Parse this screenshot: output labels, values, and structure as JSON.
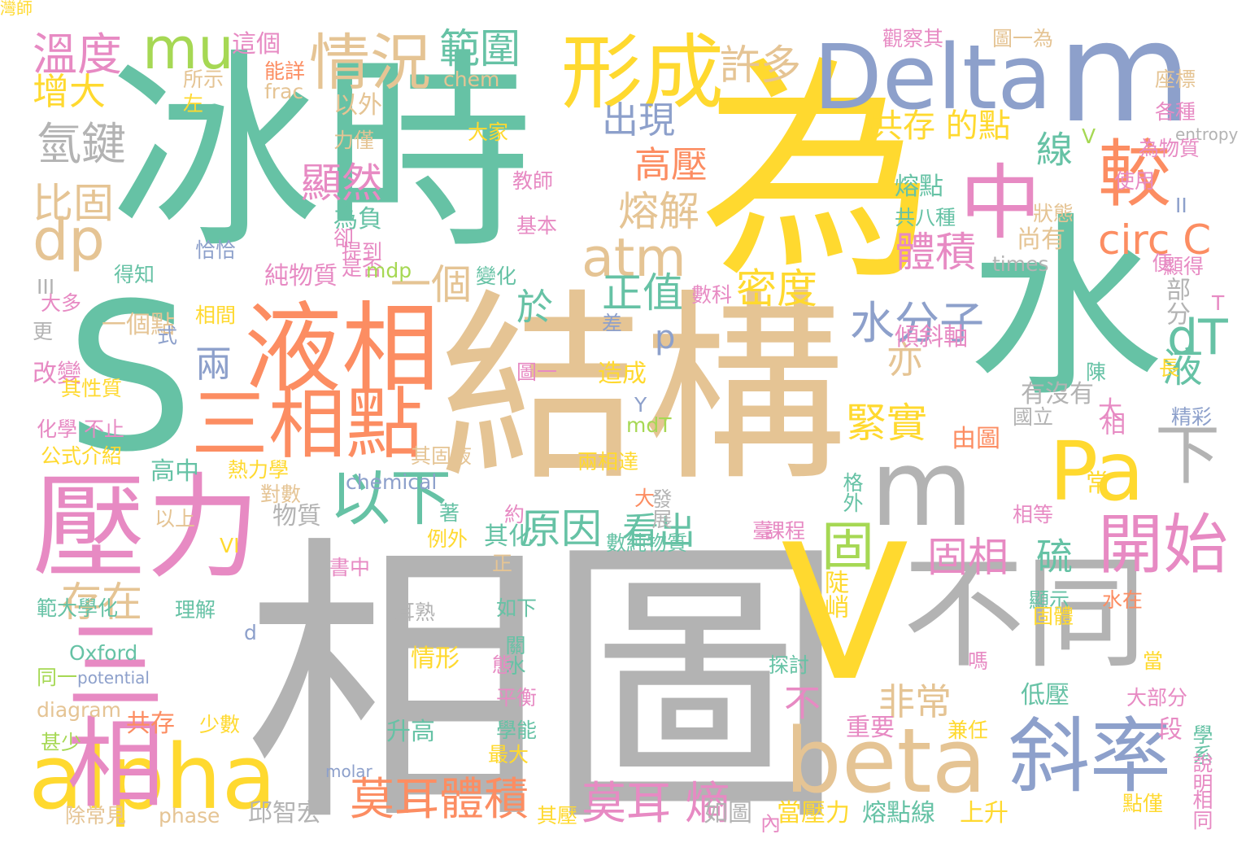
{
  "palette": {
    "green": "#66c2a5",
    "orange": "#fc8d62",
    "blue": "#8da0cb",
    "pink": "#e78ac3",
    "lime": "#a6d854",
    "yellow": "#ffd92f",
    "tan": "#e5c494",
    "gray": "#b3b3b3"
  },
  "words": [
    {
      "t": "相圖",
      "c": "gray"
    },
    {
      "t": "結構",
      "c": "tan"
    },
    {
      "t": "冰時",
      "c": "green"
    },
    {
      "t": "為",
      "c": "yellow"
    },
    {
      "t": "水",
      "c": "green"
    },
    {
      "t": "S",
      "c": "green"
    },
    {
      "t": "V",
      "c": "yellow"
    },
    {
      "t": "m",
      "c": "blue"
    },
    {
      "t": "Delta",
      "c": "blue"
    },
    {
      "t": "壓力",
      "c": "pink"
    },
    {
      "t": "液相",
      "c": "orange"
    },
    {
      "t": "三相點",
      "c": "orange"
    },
    {
      "t": "alpha",
      "c": "yellow"
    },
    {
      "t": "beta",
      "c": "tan"
    },
    {
      "t": "不同",
      "c": "gray"
    },
    {
      "t": "m",
      "c": "gray"
    },
    {
      "t": "形成",
      "c": "yellow"
    },
    {
      "t": "三相",
      "c": "pink"
    },
    {
      "t": "斜率",
      "c": "blue"
    },
    {
      "t": "Pa",
      "c": "yellow"
    },
    {
      "t": "中",
      "c": "pink"
    },
    {
      "t": "較",
      "c": "orange"
    },
    {
      "t": "情況",
      "c": "tan"
    },
    {
      "t": "mu",
      "c": "lime"
    },
    {
      "t": "dp",
      "c": "tan"
    },
    {
      "t": "以下",
      "c": "green"
    },
    {
      "t": "atm",
      "c": "tan"
    },
    {
      "t": "dT",
      "c": "green"
    },
    {
      "t": "下",
      "c": "gray"
    },
    {
      "t": "開始",
      "c": "pink"
    },
    {
      "t": "莫耳體積",
      "c": "orange"
    },
    {
      "t": "莫耳 熵",
      "c": "pink"
    },
    {
      "t": "circ C",
      "c": "orange"
    },
    {
      "t": "水分子",
      "c": "blue"
    },
    {
      "t": "緊實",
      "c": "yellow"
    },
    {
      "t": "固",
      "c": "lime"
    },
    {
      "t": "溫度",
      "c": "pink"
    },
    {
      "t": "氫鍵",
      "c": "gray"
    },
    {
      "t": "比固",
      "c": "tan"
    },
    {
      "t": "增大",
      "c": "yellow"
    },
    {
      "t": "範圍",
      "c": "green"
    },
    {
      "t": "許多",
      "c": "tan"
    },
    {
      "t": "出現",
      "c": "blue"
    },
    {
      "t": "高壓",
      "c": "orange"
    },
    {
      "t": "顯然",
      "c": "pink"
    },
    {
      "t": "熔解",
      "c": "tan"
    },
    {
      "t": "體積",
      "c": "pink"
    },
    {
      "t": "線",
      "c": "green"
    },
    {
      "t": "一個",
      "c": "tan"
    },
    {
      "t": "正值",
      "c": "green"
    },
    {
      "t": "密度",
      "c": "yellow"
    },
    {
      "t": "於",
      "c": "green"
    },
    {
      "t": "p",
      "c": "blue"
    },
    {
      "t": "兩",
      "c": "blue"
    },
    {
      "t": "亦",
      "c": "tan"
    },
    {
      "t": "原因",
      "c": "green"
    },
    {
      "t": "看出",
      "c": "green"
    },
    {
      "t": "固相",
      "c": "pink"
    },
    {
      "t": "硫",
      "c": "green"
    },
    {
      "t": "存在",
      "c": "tan"
    },
    {
      "t": "非常",
      "c": "tan"
    },
    {
      "t": "不",
      "c": "pink"
    },
    {
      "t": "液",
      "c": "green"
    },
    {
      "t": "共存 的點",
      "c": "yellow"
    },
    {
      "t": "熔點",
      "c": "green"
    },
    {
      "t": "共八種",
      "c": "green"
    },
    {
      "t": "尚有",
      "c": "tan"
    },
    {
      "t": "狀態",
      "c": "tan"
    },
    {
      "t": "傾斜軸",
      "c": "pink"
    },
    {
      "t": "部分",
      "c": "gray"
    },
    {
      "t": "Oxford",
      "c": "green"
    },
    {
      "t": "情形",
      "c": "yellow"
    },
    {
      "t": "升高",
      "c": "green"
    },
    {
      "t": "共存",
      "c": "orange"
    },
    {
      "t": "邱智宏",
      "c": "gray"
    },
    {
      "t": "如圖",
      "c": "gray"
    },
    {
      "t": "當壓力",
      "c": "yellow"
    },
    {
      "t": "熔點線",
      "c": "green"
    },
    {
      "t": "上升",
      "c": "yellow"
    },
    {
      "t": "低壓",
      "c": "green"
    },
    {
      "t": "重要",
      "c": "pink"
    },
    {
      "t": "陡峭",
      "c": "yellow"
    },
    {
      "t": "由圖",
      "c": "orange"
    },
    {
      "t": "造成",
      "c": "yellow"
    },
    {
      "t": "一個點",
      "c": "tan"
    },
    {
      "t": "改變",
      "c": "pink"
    },
    {
      "t": "高中",
      "c": "green"
    },
    {
      "t": "物質",
      "c": "gray"
    },
    {
      "t": "這個",
      "c": "pink"
    },
    {
      "t": "所示",
      "c": "tan"
    },
    {
      "t": "以外",
      "c": "tan"
    },
    {
      "t": "純物質",
      "c": "pink"
    },
    {
      "t": "為負",
      "c": "green"
    },
    {
      "t": "相間",
      "c": "yellow"
    },
    {
      "t": "chem",
      "c": "tan"
    },
    {
      "t": "frac",
      "c": "tan"
    },
    {
      "t": "chemical",
      "c": "blue"
    },
    {
      "t": "diagram",
      "c": "tan"
    },
    {
      "t": "phase",
      "c": "tan"
    },
    {
      "t": "potential",
      "c": "blue"
    },
    {
      "t": "molar",
      "c": "blue"
    },
    {
      "t": "entropy",
      "c": "gray"
    },
    {
      "t": "times",
      "c": "gray"
    },
    {
      "t": "觀察其",
      "c": "pink"
    },
    {
      "t": "圖一為",
      "c": "tan"
    },
    {
      "t": "座標",
      "c": "tan"
    },
    {
      "t": "各種",
      "c": "pink"
    },
    {
      "t": "使用",
      "c": "pink"
    },
    {
      "t": "為物質",
      "c": "pink"
    },
    {
      "t": "顯得",
      "c": "pink"
    },
    {
      "t": "便",
      "c": "pink"
    },
    {
      "t": "大",
      "c": "pink"
    },
    {
      "t": "常",
      "c": "yellow"
    },
    {
      "t": "格外",
      "c": "green"
    },
    {
      "t": "課程",
      "c": "pink"
    },
    {
      "t": "水在",
      "c": "orange"
    },
    {
      "t": "顯示",
      "c": "green"
    },
    {
      "t": "探討",
      "c": "green"
    },
    {
      "t": "大部分",
      "c": "pink"
    },
    {
      "t": "兼任",
      "c": "yellow"
    },
    {
      "t": "段",
      "c": "pink"
    },
    {
      "t": "學系",
      "c": "green"
    },
    {
      "t": "說明",
      "c": "pink"
    },
    {
      "t": "相同",
      "c": "pink"
    },
    {
      "t": "點僅",
      "c": "yellow"
    },
    {
      "t": "精彩",
      "c": "blue"
    },
    {
      "t": "有沒有",
      "c": "gray"
    },
    {
      "t": "陳",
      "c": "green"
    },
    {
      "t": "國立",
      "c": "gray"
    },
    {
      "t": "相",
      "c": "pink"
    },
    {
      "t": "大",
      "c": "orange"
    },
    {
      "t": "發展",
      "c": "gray"
    },
    {
      "t": "臺",
      "c": "pink"
    },
    {
      "t": "相等",
      "c": "pink"
    },
    {
      "t": "數純物質",
      "c": "green"
    },
    {
      "t": "其化",
      "c": "green"
    },
    {
      "t": "正",
      "c": "tan"
    },
    {
      "t": "例外",
      "c": "yellow"
    },
    {
      "t": "書中",
      "c": "pink"
    },
    {
      "t": "如下",
      "c": "green"
    },
    {
      "t": "耳熟",
      "c": "gray"
    },
    {
      "t": "關水",
      "c": "green"
    },
    {
      "t": "態",
      "c": "pink"
    },
    {
      "t": "平衡",
      "c": "pink"
    },
    {
      "t": "學能",
      "c": "green"
    },
    {
      "t": "最大",
      "c": "yellow"
    },
    {
      "t": "其壓",
      "c": "yellow"
    },
    {
      "t": "內",
      "c": "pink"
    },
    {
      "t": "d",
      "c": "blue"
    },
    {
      "t": "少數",
      "c": "yellow"
    },
    {
      "t": "理解",
      "c": "green"
    },
    {
      "t": "範大學化",
      "c": "green"
    },
    {
      "t": "同一",
      "c": "lime"
    },
    {
      "t": "甚少",
      "c": "lime"
    },
    {
      "t": "除常見",
      "c": "tan"
    },
    {
      "t": "以上",
      "c": "tan"
    },
    {
      "t": "熱力學",
      "c": "yellow"
    },
    {
      "t": "對數",
      "c": "tan"
    },
    {
      "t": "其固液",
      "c": "tan"
    },
    {
      "t": "介紹",
      "c": "yellow"
    },
    {
      "t": "其性質",
      "c": "yellow"
    },
    {
      "t": "化學 不止",
      "c": "pink"
    },
    {
      "t": "公式",
      "c": "yellow"
    },
    {
      "t": "式",
      "c": "blue"
    },
    {
      "t": "數科",
      "c": "pink"
    },
    {
      "t": "差",
      "c": "blue"
    },
    {
      "t": "圖一",
      "c": "pink"
    },
    {
      "t": "變化",
      "c": "green"
    },
    {
      "t": "是否",
      "c": "pink"
    },
    {
      "t": "提到",
      "c": "pink"
    },
    {
      "t": "卻",
      "c": "pink"
    },
    {
      "t": "基本",
      "c": "pink"
    },
    {
      "t": "恰恰",
      "c": "blue"
    },
    {
      "t": "得知",
      "c": "green"
    },
    {
      "t": "大多",
      "c": "pink"
    },
    {
      "t": "更",
      "c": "gray"
    },
    {
      "t": "左",
      "c": "yellow"
    },
    {
      "t": "能詳",
      "c": "orange"
    },
    {
      "t": "力僅",
      "c": "tan"
    },
    {
      "t": "教師",
      "c": "pink"
    },
    {
      "t": "大家",
      "c": "yellow"
    },
    {
      "t": "兩相達",
      "c": "yellow"
    },
    {
      "t": "著",
      "c": "green"
    },
    {
      "t": "約",
      "c": "pink"
    },
    {
      "t": "固體",
      "c": "yellow"
    },
    {
      "t": "嗎",
      "c": "pink"
    },
    {
      "t": "當",
      "c": "yellow"
    },
    {
      "t": "Y",
      "c": "blue"
    },
    {
      "t": "VI",
      "c": "yellow"
    },
    {
      "t": "V",
      "c": "lime"
    },
    {
      "t": "T",
      "c": "pink"
    },
    {
      "t": "長",
      "c": "yellow"
    },
    {
      "t": "III",
      "c": "gray"
    },
    {
      "t": "II",
      "c": "blue"
    },
    {
      "t": "mdp",
      "c": "lime"
    },
    {
      "t": "mdT",
      "c": "lime"
    },
    {
      "t": "灣師",
      "c": "yellow"
    }
  ]
}
